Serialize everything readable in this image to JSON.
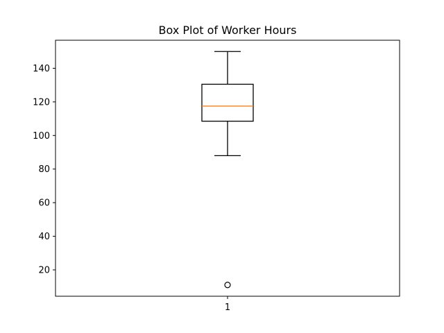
{
  "chart_data": {
    "type": "box",
    "title": "Box Plot of Worker Hours",
    "xlabel": "",
    "ylabel": "",
    "categories": [
      "1"
    ],
    "ylim": [
      4.3,
      156.7
    ],
    "yticks": [
      20,
      40,
      60,
      80,
      100,
      120,
      140
    ],
    "grid": false,
    "boxes": [
      {
        "category": "1",
        "whisker_low": 88,
        "q1": 108.5,
        "median": 117.5,
        "q3": 130.5,
        "whisker_high": 150,
        "outliers": [
          11
        ]
      }
    ],
    "colors": {
      "median": "#ff7f0e",
      "box": "#000000",
      "outlier_edge": "#000000"
    }
  }
}
